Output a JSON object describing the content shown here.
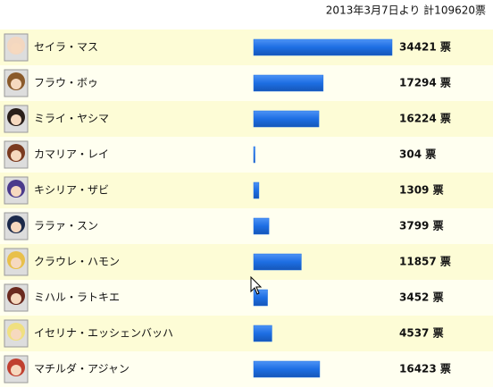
{
  "chart_data": {
    "type": "bar",
    "subtitle": "2013年3月7日より 計109620票",
    "categories": [
      "セイラ・マス",
      "フラウ・ボゥ",
      "ミライ・ヤシマ",
      "カマリア・レイ",
      "キシリア・ザビ",
      "ララァ・スン",
      "クラウレ・ハモン",
      "ミハル・ラトキエ",
      "イセリナ・エッシェンバッハ",
      "マチルダ・アジャン"
    ],
    "values": [
      34421,
      17294,
      16224,
      304,
      1309,
      3799,
      11857,
      3452,
      4537,
      16423
    ],
    "value_labels": [
      "34421 票",
      "17294 票",
      "16224 票",
      "304 票",
      "1309 票",
      "3799 票",
      "11857 票",
      "3452 票",
      "4537 票",
      "16423 票"
    ],
    "color": "#1d6ee3"
  }
}
